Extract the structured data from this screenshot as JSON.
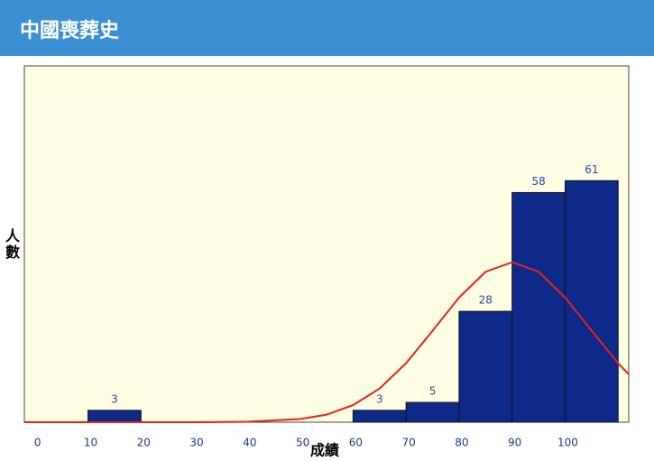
{
  "header": {
    "title": "中國喪葬史"
  },
  "chart_data": {
    "type": "histogram",
    "bins": [
      0,
      10,
      20,
      30,
      40,
      50,
      60,
      70,
      80,
      90,
      100,
      110
    ],
    "values": [
      0,
      3,
      0,
      0,
      0,
      0,
      3,
      5,
      28,
      58,
      61
    ],
    "color": "#0d2a8a",
    "xlabel": "成績",
    "ylabel": "人數",
    "xlim": [
      -2,
      112
    ],
    "ylim": [
      0,
      90
    ],
    "xticks": [
      0,
      10,
      20,
      30,
      40,
      50,
      60,
      70,
      80,
      90,
      100
    ],
    "curve": {
      "color": "#e8201c",
      "x": [
        -2,
        10,
        20,
        30,
        40,
        50,
        55,
        60,
        65,
        70,
        75,
        80,
        85,
        90,
        95,
        100,
        105,
        110,
        112
      ],
      "y": [
        0,
        0,
        0,
        0,
        0.1,
        0.8,
        1.9,
        4.3,
        8.5,
        14.9,
        23.1,
        31.5,
        38,
        40.4,
        38,
        31.5,
        23.1,
        14.9,
        12.1
      ]
    }
  }
}
